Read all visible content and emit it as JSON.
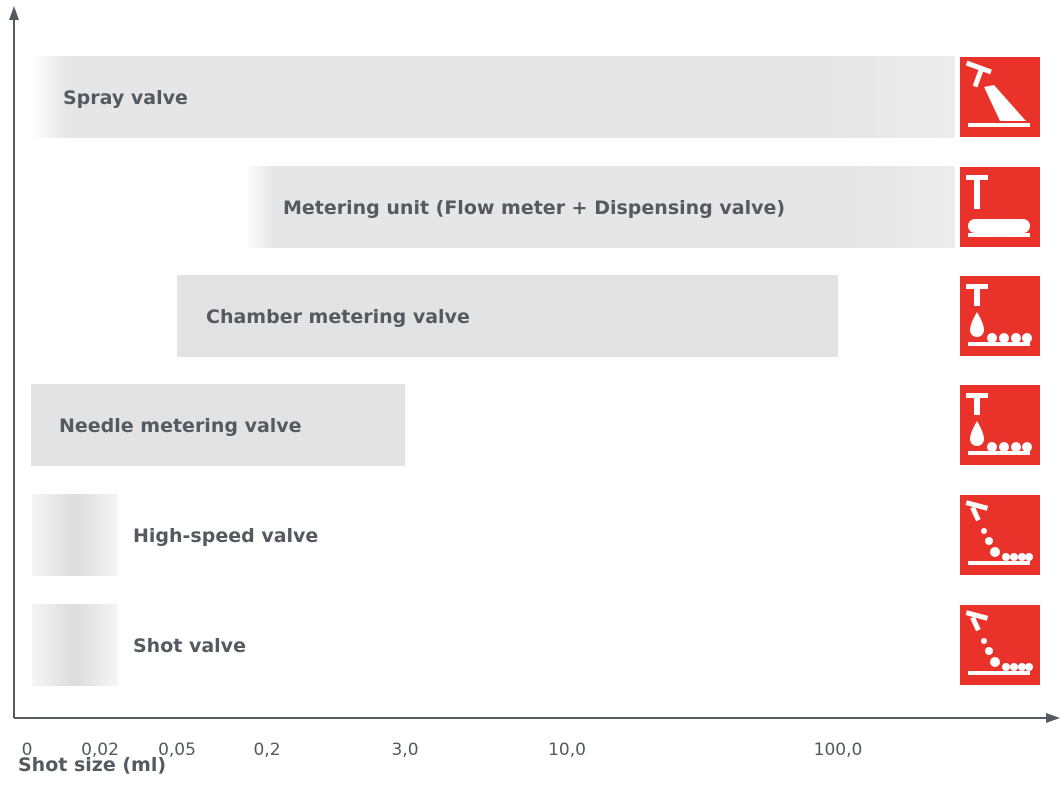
{
  "chart_data": {
    "type": "bar",
    "orientation": "horizontal",
    "xlabel": "Shot size (ml)",
    "x_tick_labels": [
      "0",
      "0,02",
      "0,05",
      "0,2",
      "3,0",
      "10,0",
      "100,0"
    ],
    "series": [
      {
        "name": "Spray valve",
        "range": [
          "0",
          ">100,0"
        ],
        "style": "gradient-left",
        "icon": "spray-valve-icon"
      },
      {
        "name": "Metering unit (Flow meter + Dispensing valve)",
        "range": [
          "0,2",
          ">100,0"
        ],
        "style": "gradient-left",
        "icon": "metering-unit-icon"
      },
      {
        "name": "Chamber metering valve",
        "range": [
          "0,05",
          "100,0"
        ],
        "style": "solid",
        "icon": "chamber-metering-valve-icon"
      },
      {
        "name": "Needle metering valve",
        "range": [
          "0",
          "3,0"
        ],
        "style": "solid",
        "icon": "needle-metering-valve-icon"
      },
      {
        "name": "High-speed valve",
        "range": [
          "0",
          "0,02"
        ],
        "style": "gradient-center",
        "icon": "high-speed-valve-icon"
      },
      {
        "name": "Shot valve",
        "range": [
          "0",
          "0,02"
        ],
        "style": "gradient-center",
        "icon": "shot-valve-icon"
      }
    ],
    "colors": {
      "bar": "#e3e3e4",
      "axis": "#555a60",
      "text": "#555a60",
      "icon_bg": "#e8322a",
      "icon_fg": "#ffffff"
    },
    "grid": false,
    "legend": "none"
  }
}
